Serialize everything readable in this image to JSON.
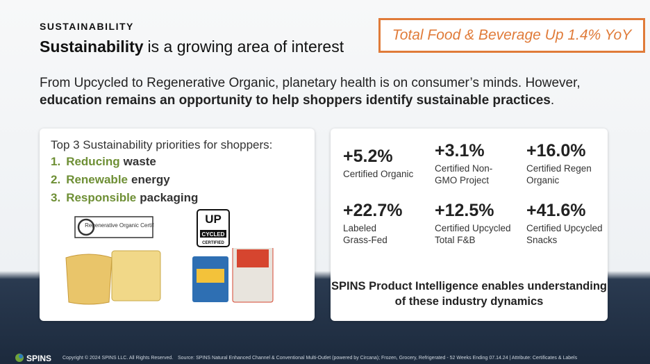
{
  "header": {
    "eyebrow": "SUSTAINABILITY",
    "title_bold": "Sustainability",
    "title_rest": "is a growing area of interest",
    "callout": "Total Food & Beverage Up 1.4% YoY"
  },
  "intro": {
    "text": "From Upcycled to Regenerative Organic, planetary health is on consumer’s minds. However,",
    "bold": "education remains an opportunity to help shoppers identify sustainable practices",
    "end": "."
  },
  "priorities": {
    "title": "Top 3 Sustainability priorities for shoppers:",
    "items": [
      {
        "number": "1.",
        "highlight": "Reducing",
        "rest": "waste"
      },
      {
        "number": "2.",
        "highlight": "Renewable",
        "rest": "energy"
      },
      {
        "number": "3.",
        "highlight": "Responsible",
        "rest": "packaging"
      }
    ]
  },
  "logos": {
    "regen": "Regenerative Organic Certified",
    "up": "UP",
    "cycled": "CYCLED",
    "certified": "CERTIFIED"
  },
  "stats": [
    {
      "value": "+5.2%",
      "label": [
        "Certified Organic"
      ]
    },
    {
      "value": "+3.1%",
      "label": [
        "Certified Non-",
        "GMO Project"
      ]
    },
    {
      "value": "+16.0%",
      "label": [
        "Certified Regen",
        "Organic"
      ]
    },
    {
      "value": "+22.7%",
      "label": [
        "Labeled",
        "Grass-Fed"
      ]
    },
    {
      "value": "+12.5%",
      "label": [
        "Certified Upcycled",
        "Total F&B"
      ]
    },
    {
      "value": "+41.6%",
      "label": [
        "Certified Upcycled",
        "Snacks"
      ]
    }
  ],
  "stats_footer": "SPINS Product Intelligence enables understanding of these industry dynamics",
  "footer": {
    "logo": "SPINS",
    "copyright": "Copyright © 2024 SPINS LLC. All Rights Reserved.",
    "source": "Source:  SPINS Natural Enhanced Channel & Conventional Multi-Outlet (powered by Circana); Frozen, Grocery, Refrigerated - 52 Weeks Ending 07.14.24 | Attribute: Certificates & Labels"
  }
}
